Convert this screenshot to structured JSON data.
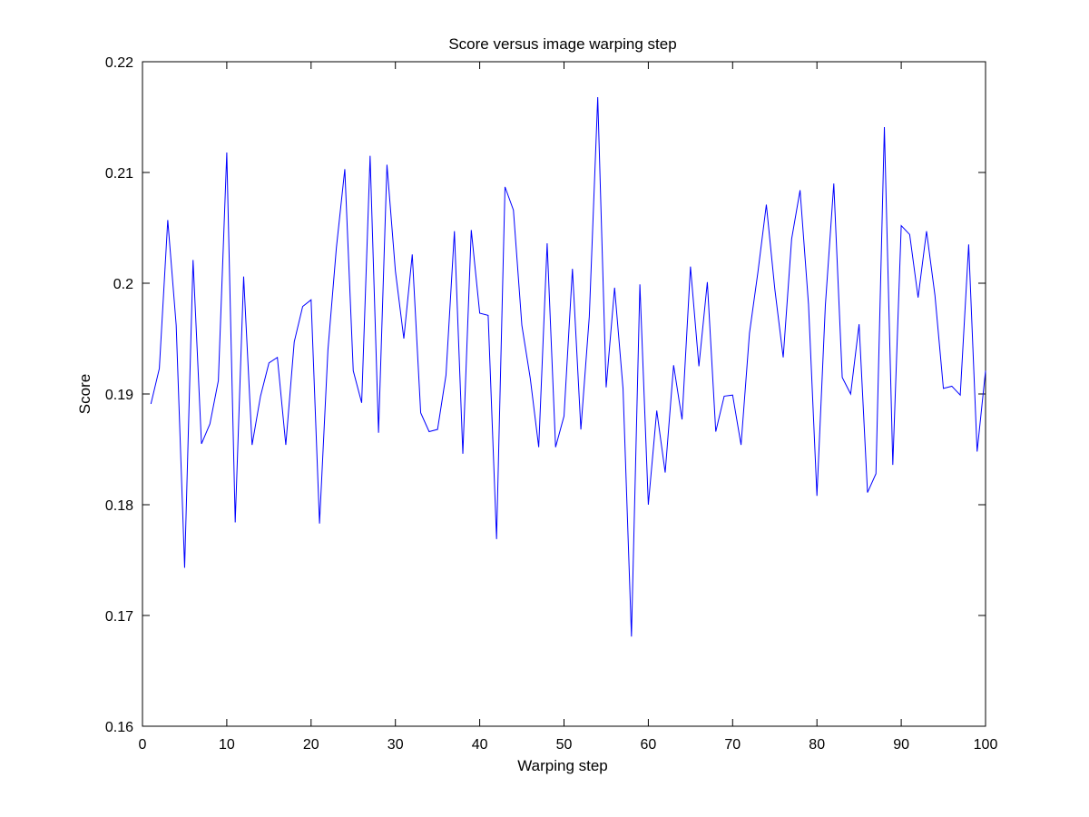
{
  "chart_data": {
    "type": "line",
    "title": "Score versus image warping step",
    "xlabel": "Warping step",
    "ylabel": "Score",
    "xlim": [
      0,
      100
    ],
    "ylim": [
      0.16,
      0.22
    ],
    "xticks": [
      0,
      10,
      20,
      30,
      40,
      50,
      60,
      70,
      80,
      90,
      100
    ],
    "xtick_labels": [
      "0",
      "10",
      "20",
      "30",
      "40",
      "50",
      "60",
      "70",
      "80",
      "90",
      "100"
    ],
    "yticks": [
      0.16,
      0.17,
      0.18,
      0.19,
      0.2,
      0.21,
      0.22
    ],
    "ytick_labels": [
      "0.16",
      "0.17",
      "0.18",
      "0.19",
      "0.2",
      "0.21",
      "0.22"
    ],
    "grid": false,
    "legend": "none",
    "line_color": "#0000ff",
    "series": [
      {
        "x": [
          1,
          2,
          3,
          4,
          5,
          6,
          7,
          8,
          9,
          10,
          11,
          12,
          13,
          14,
          15,
          16,
          17,
          18,
          19,
          20,
          21,
          22,
          23,
          24,
          25,
          26,
          27,
          28,
          29,
          30,
          31,
          32,
          33,
          34,
          35,
          36,
          37,
          38,
          39,
          40,
          41,
          42,
          43,
          44,
          45,
          46,
          47,
          48,
          49,
          50,
          51,
          52,
          53,
          54,
          55,
          56,
          57,
          58,
          59,
          60,
          61,
          62,
          63,
          64,
          65,
          66,
          67,
          68,
          69,
          70,
          71,
          72,
          73,
          74,
          75,
          76,
          77,
          78,
          79,
          80,
          81,
          82,
          83,
          84,
          85,
          86,
          87,
          88,
          89,
          90,
          91,
          92,
          93,
          94,
          95,
          96,
          97,
          98,
          99,
          100
        ],
        "values": [
          0.1891,
          0.1923,
          0.2057,
          0.1962,
          0.1743,
          0.2021,
          0.1855,
          0.1873,
          0.1912,
          0.2118,
          0.1784,
          0.2006,
          0.1854,
          0.1898,
          0.1928,
          0.1933,
          0.1854,
          0.1947,
          0.1979,
          0.1985,
          0.1783,
          0.194,
          0.2032,
          0.2103,
          0.1921,
          0.1892,
          0.2115,
          0.1865,
          0.2107,
          0.2011,
          0.195,
          0.2026,
          0.1883,
          0.1866,
          0.1868,
          0.1917,
          0.2047,
          0.1846,
          0.2048,
          0.1973,
          0.1971,
          0.1769,
          0.2087,
          0.2066,
          0.1962,
          0.1914,
          0.1852,
          0.2036,
          0.1852,
          0.188,
          0.2013,
          0.1868,
          0.197,
          0.2168,
          0.1906,
          0.1996,
          0.1905,
          0.1681,
          0.1999,
          0.18,
          0.1885,
          0.1829,
          0.1926,
          0.1877,
          0.2015,
          0.1925,
          0.2001,
          0.1866,
          0.1898,
          0.1899,
          0.1854,
          0.1955,
          0.201,
          0.2071,
          0.1995,
          0.1933,
          0.204,
          0.2084,
          0.1981,
          0.1808,
          0.198,
          0.209,
          0.1915,
          0.19,
          0.1963,
          0.1811,
          0.1828,
          0.2141,
          0.1836,
          0.2052,
          0.2044,
          0.1987,
          0.2047,
          0.1989,
          0.1905,
          0.1907,
          0.1899,
          0.2035,
          0.1848,
          0.1921
        ]
      }
    ]
  }
}
